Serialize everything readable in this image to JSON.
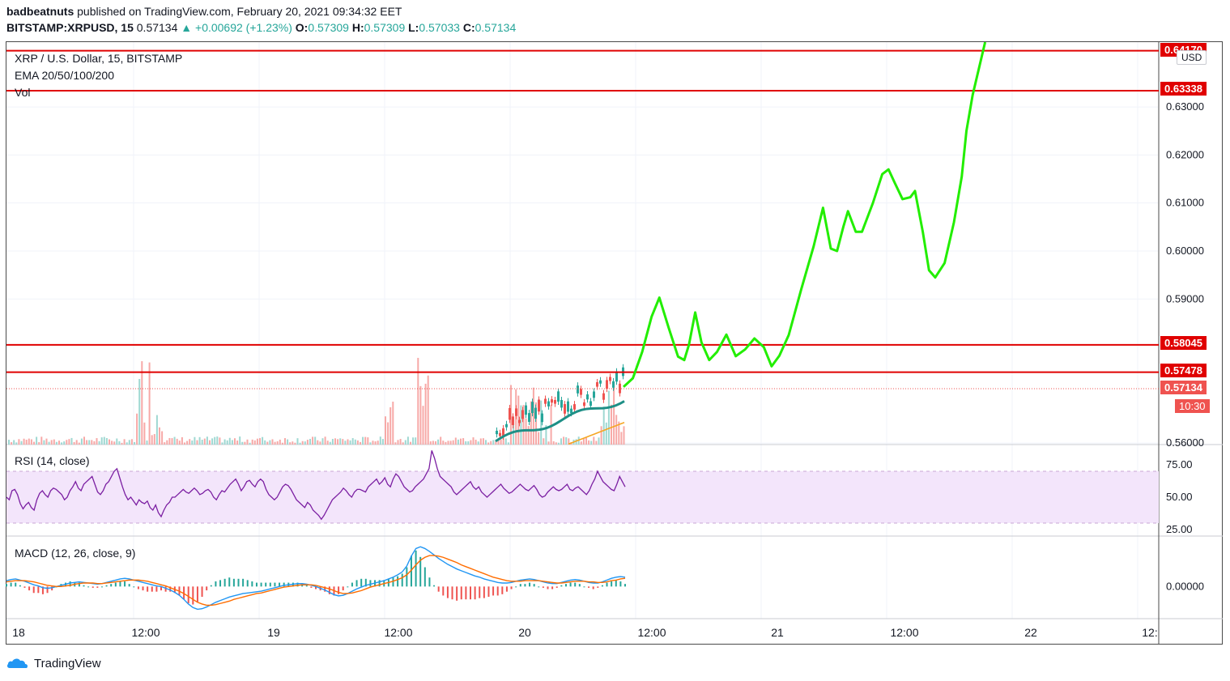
{
  "header": {
    "publisher": "badbeatnuts",
    "published_text": "published on TradingView.com, February 20, 2021 09:34:32 EET",
    "symbol": "BITSTAMP:XRPUSD, 15",
    "last": "0.57134",
    "change": "▲ +0.00692 (+1.23%)",
    "open_label": "O:",
    "open": "0.57309",
    "high_label": "H:",
    "high": "0.57309",
    "low_label": "L:",
    "low": "0.57033",
    "close_label": "C:",
    "close": "0.57134"
  },
  "legend": {
    "title": "XRP / U.S. Dollar, 15, BITSTAMP",
    "ema": "EMA 20/50/100/200",
    "vol": "Vol",
    "rsi": "RSI (14, close)",
    "macd": "MACD (12, 26, close, 9)"
  },
  "currency_button": "USD",
  "price_tags": {
    "top": "0.64170",
    "r1": "0.63338",
    "r2": "0.58045",
    "r3": "0.57478",
    "last": "0.57134",
    "countdown": "10:30"
  },
  "brand": "TradingView",
  "colors": {
    "up": "#26a69a",
    "down": "#ef5350",
    "level": "#e00000",
    "projection": "#22ee00",
    "rsi_line": "#7b1fa2",
    "rsi_band": "#f3e5fb",
    "ema20": "#1e8f86",
    "ema50": "#f5a623",
    "macd_line": "#2196f3",
    "signal_line": "#ff6d00"
  },
  "chart_data": {
    "type": "line",
    "title": "XRP / U.S. Dollar, 15, BITSTAMP",
    "price_axis": {
      "ticks": [
        "0.63000",
        "0.62000",
        "0.61000",
        "0.60000",
        "0.59000",
        "0.56000"
      ],
      "ylim": [
        0.5597,
        0.6435
      ]
    },
    "time_axis": [
      "18",
      "12:00",
      "19",
      "12:00",
      "20",
      "12:00",
      "21",
      "12:00",
      "22",
      "12:"
    ],
    "horizontal_levels": [
      0.6417,
      0.63338,
      0.58045,
      0.57478
    ],
    "last_price": 0.57134,
    "projection_path": {
      "name": "projection",
      "points": [
        [
          0.0,
          0.5717
        ],
        [
          0.3,
          0.5735
        ],
        [
          0.6,
          0.579
        ],
        [
          0.9,
          0.5863
        ],
        [
          1.15,
          0.5903
        ],
        [
          1.45,
          0.584
        ],
        [
          1.75,
          0.578
        ],
        [
          1.95,
          0.5773
        ],
        [
          2.1,
          0.5805
        ],
        [
          2.3,
          0.5872
        ],
        [
          2.5,
          0.581
        ],
        [
          2.75,
          0.5773
        ],
        [
          3.0,
          0.579
        ],
        [
          3.3,
          0.5826
        ],
        [
          3.6,
          0.5781
        ],
        [
          3.9,
          0.5795
        ],
        [
          4.2,
          0.5818
        ],
        [
          4.5,
          0.58
        ],
        [
          4.75,
          0.576
        ],
        [
          5.0,
          0.5782
        ],
        [
          5.3,
          0.5825
        ],
        [
          5.7,
          0.592
        ],
        [
          6.1,
          0.601
        ],
        [
          6.4,
          0.609
        ],
        [
          6.65,
          0.6005
        ],
        [
          6.85,
          0.6
        ],
        [
          7.05,
          0.605
        ],
        [
          7.2,
          0.6083
        ],
        [
          7.45,
          0.604
        ],
        [
          7.65,
          0.604
        ],
        [
          8.0,
          0.61
        ],
        [
          8.3,
          0.616
        ],
        [
          8.5,
          0.617
        ],
        [
          8.7,
          0.6142
        ],
        [
          8.95,
          0.6108
        ],
        [
          9.2,
          0.6112
        ],
        [
          9.35,
          0.6125
        ],
        [
          9.6,
          0.604
        ],
        [
          9.8,
          0.596
        ],
        [
          10.0,
          0.5945
        ],
        [
          10.3,
          0.5975
        ],
        [
          10.6,
          0.606
        ],
        [
          10.85,
          0.6155
        ],
        [
          11.0,
          0.625
        ],
        [
          11.2,
          0.6325
        ],
        [
          11.4,
          0.638
        ],
        [
          11.6,
          0.6435
        ]
      ]
    },
    "rsi": {
      "name": "RSI (14, close)",
      "ticks": [
        "75.00",
        "50.00",
        "25.00"
      ],
      "ylim": [
        20,
        90
      ],
      "band": [
        30,
        70
      ],
      "values": [
        50,
        48,
        55,
        56,
        52,
        45,
        41,
        44,
        46,
        42,
        40,
        48,
        53,
        55,
        52,
        50,
        55,
        57,
        56,
        54,
        52,
        48,
        50,
        55,
        58,
        62,
        57,
        55,
        60,
        62,
        64,
        66,
        60,
        54,
        52,
        55,
        60,
        62,
        66,
        70,
        72,
        65,
        58,
        52,
        48,
        50,
        47,
        44,
        48,
        46,
        45,
        47,
        42,
        40,
        44,
        38,
        35,
        40,
        44,
        46,
        50,
        50,
        52,
        54,
        56,
        54,
        53,
        55,
        57,
        55,
        52,
        53,
        55,
        56,
        54,
        50,
        48,
        52,
        55,
        54,
        57,
        60,
        62,
        64,
        60,
        55,
        58,
        62,
        63,
        60,
        58,
        62,
        64,
        62,
        56,
        52,
        50,
        48,
        50,
        54,
        58,
        60,
        59,
        56,
        52,
        48,
        46,
        44,
        42,
        46,
        44,
        40,
        38,
        36,
        33,
        36,
        40,
        44,
        48,
        50,
        52,
        54,
        57,
        55,
        52,
        50,
        54,
        56,
        56,
        55,
        54,
        58,
        60,
        62,
        64,
        60,
        62,
        65,
        60,
        58,
        64,
        68,
        66,
        62,
        58,
        56,
        54,
        55,
        58,
        60,
        62,
        64,
        68,
        72,
        86,
        80,
        72,
        66,
        64,
        62,
        60,
        58,
        54,
        52,
        54,
        56,
        58,
        60,
        62,
        58,
        56,
        58,
        54,
        52,
        50,
        52,
        54,
        56,
        58,
        60,
        57,
        55,
        53,
        54,
        56,
        58,
        60,
        58,
        56,
        55,
        57,
        59,
        56,
        52,
        50,
        51,
        54,
        56,
        58,
        56,
        55,
        56,
        58,
        60,
        56,
        55,
        57,
        58,
        56,
        54,
        52,
        55,
        60,
        64,
        70,
        66,
        62,
        60,
        58,
        56,
        55,
        60,
        66,
        62,
        58
      ]
    },
    "macd": {
      "name": "MACD (12, 26, close, 9)",
      "ticks": [
        "0.00000"
      ],
      "ylim": [
        -0.0055,
        0.0085
      ],
      "zero": 0.0,
      "macd_line": [
        0.001,
        0.0012,
        0.0013,
        0.0011,
        0.0009,
        0.0006,
        0.0003,
        0.0001,
        -0.0002,
        -0.0003,
        -0.0002,
        0.0,
        0.0002,
        0.0004,
        0.0006,
        0.0007,
        0.0008,
        0.0007,
        0.0006,
        0.0005,
        0.0004,
        0.0005,
        0.0007,
        0.0009,
        0.0011,
        0.0013,
        0.0014,
        0.0013,
        0.0011,
        0.0009,
        0.0007,
        0.0005,
        0.0003,
        0.0001,
        0.0,
        -0.0003,
        -0.0006,
        -0.001,
        -0.0015,
        -0.0022,
        -0.003,
        -0.0036,
        -0.0039,
        -0.0038,
        -0.0035,
        -0.0031,
        -0.0027,
        -0.0024,
        -0.0021,
        -0.0018,
        -0.0016,
        -0.0014,
        -0.0012,
        -0.0011,
        -0.001,
        -0.0009,
        -0.0008,
        -0.0006,
        -0.0004,
        -0.0002,
        0.0,
        0.0002,
        0.0003,
        0.0004,
        0.0005,
        0.0005,
        0.0004,
        0.0002,
        0.0,
        -0.0003,
        -0.0006,
        -0.001,
        -0.0014,
        -0.0016,
        -0.0015,
        -0.0012,
        -0.0008,
        -0.0004,
        -0.0001,
        0.0002,
        0.0004,
        0.0006,
        0.0008,
        0.001,
        0.0013,
        0.0016,
        0.002,
        0.0025,
        0.0035,
        0.0052,
        0.0065,
        0.0068,
        0.0065,
        0.006,
        0.0054,
        0.0048,
        0.0043,
        0.0038,
        0.0034,
        0.003,
        0.0027,
        0.0024,
        0.0021,
        0.0018,
        0.0016,
        0.0013,
        0.0011,
        0.0009,
        0.0007,
        0.0006,
        0.0006,
        0.0007,
        0.0009,
        0.0011,
        0.0012,
        0.0013,
        0.0012,
        0.001,
        0.0008,
        0.0006,
        0.0005,
        0.0005,
        0.0007,
        0.0009,
        0.0011,
        0.0012,
        0.0011,
        0.0009,
        0.0007,
        0.0006,
        0.0006,
        0.0008,
        0.0011,
        0.0014,
        0.0016,
        0.0017,
        0.0016
      ],
      "signal_line": [
        0.0008,
        0.0009,
        0.001,
        0.001,
        0.001,
        0.0009,
        0.0008,
        0.0006,
        0.0004,
        0.0002,
        0.0001,
        0.0,
        0.0,
        0.0001,
        0.0002,
        0.0004,
        0.0005,
        0.0006,
        0.0006,
        0.0006,
        0.0005,
        0.0005,
        0.0006,
        0.0007,
        0.0008,
        0.0009,
        0.001,
        0.0011,
        0.0011,
        0.0011,
        0.001,
        0.0009,
        0.0007,
        0.0005,
        0.0003,
        0.0001,
        -0.0002,
        -0.0005,
        -0.0008,
        -0.0012,
        -0.0017,
        -0.0022,
        -0.0027,
        -0.003,
        -0.0032,
        -0.0032,
        -0.0031,
        -0.0029,
        -0.0027,
        -0.0025,
        -0.0022,
        -0.002,
        -0.0018,
        -0.0016,
        -0.0014,
        -0.0012,
        -0.0011,
        -0.0009,
        -0.0007,
        -0.0005,
        -0.0003,
        -0.0001,
        0.0,
        0.0001,
        0.0002,
        0.0003,
        0.0003,
        0.0003,
        0.0002,
        0.0,
        -0.0002,
        -0.0004,
        -0.0007,
        -0.001,
        -0.0012,
        -0.0012,
        -0.0011,
        -0.0009,
        -0.0007,
        -0.0004,
        -0.0001,
        0.0001,
        0.0003,
        0.0005,
        0.0007,
        0.0009,
        0.0012,
        0.0015,
        0.002,
        0.0028,
        0.0037,
        0.0045,
        0.005,
        0.0053,
        0.0053,
        0.0052,
        0.005,
        0.0047,
        0.0044,
        0.0041,
        0.0037,
        0.0034,
        0.0031,
        0.0028,
        0.0025,
        0.0022,
        0.0019,
        0.0016,
        0.0014,
        0.0012,
        0.001,
        0.0009,
        0.0009,
        0.0009,
        0.001,
        0.001,
        0.001,
        0.001,
        0.0009,
        0.0008,
        0.0007,
        0.0006,
        0.0006,
        0.0007,
        0.0008,
        0.0009,
        0.0009,
        0.0009,
        0.0008,
        0.0008,
        0.0007,
        0.0007,
        0.0008,
        0.001,
        0.0011,
        0.0013,
        0.0014
      ]
    }
  }
}
